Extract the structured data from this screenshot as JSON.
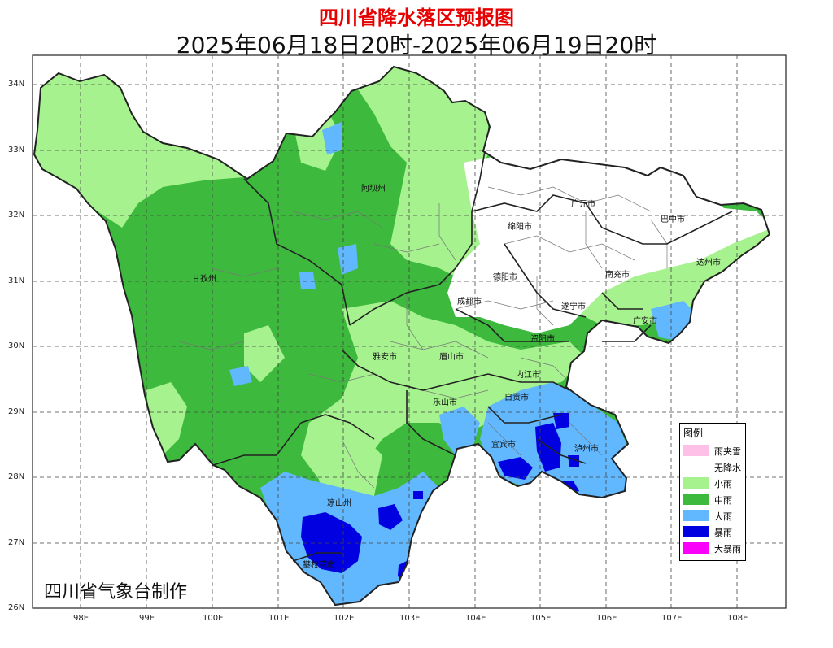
{
  "title": "四川省降水落区预报图",
  "subtitle": "2025年06月18日20时-2025年06月19日20时",
  "credit": "四川省气象台制作",
  "axes": {
    "lon_labels": [
      "98E",
      "99E",
      "100E",
      "101E",
      "102E",
      "103E",
      "104E",
      "105E",
      "106E",
      "107E",
      "108E"
    ],
    "lat_labels": [
      "34N",
      "33N",
      "32N",
      "31N",
      "30N",
      "29N",
      "28N",
      "27N",
      "26N"
    ]
  },
  "regions": [
    "阿坝州",
    "甘孜州",
    "广元市",
    "巴中市",
    "绵阳市",
    "达州市",
    "德阳市",
    "南充市",
    "成都市",
    "遂宁市",
    "广安市",
    "资阳市",
    "雅安市",
    "眉山市",
    "内江市",
    "乐山市",
    "自贡市",
    "宜宾市",
    "泸州市",
    "凉山州",
    "攀枝花市"
  ],
  "legend": {
    "title": "图例",
    "items": [
      {
        "label": "雨夹雪",
        "color": "#ffc0e8"
      },
      {
        "label": "无降水",
        "color": "#ffffff"
      },
      {
        "label": "小雨",
        "color": "#a6f28f"
      },
      {
        "label": "中雨",
        "color": "#3dba3d"
      },
      {
        "label": "大雨",
        "color": "#61b8ff"
      },
      {
        "label": "暴雨",
        "color": "#0000e1"
      },
      {
        "label": "大暴雨",
        "color": "#fa00fa"
      }
    ]
  }
}
